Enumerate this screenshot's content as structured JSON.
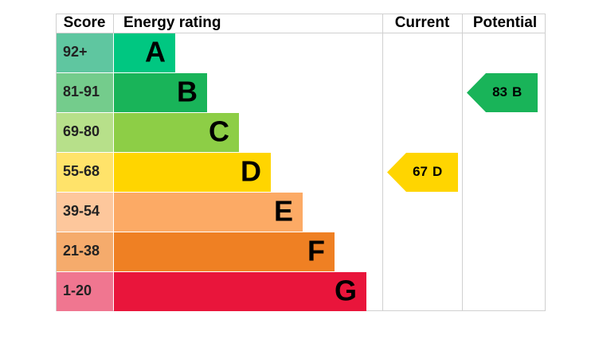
{
  "chart_data": {
    "type": "epc",
    "headers": {
      "score": "Score",
      "rating": "Energy rating",
      "current": "Current",
      "potential": "Potential"
    },
    "bands": [
      {
        "score": "92+",
        "letter": "A",
        "color": "#00c781",
        "score_color": "#5fc6a0"
      },
      {
        "score": "81-91",
        "letter": "B",
        "color": "#19b459",
        "score_color": "#74cc8c"
      },
      {
        "score": "69-80",
        "letter": "C",
        "color": "#8dce46",
        "score_color": "#b7e08a"
      },
      {
        "score": "55-68",
        "letter": "D",
        "color": "#ffd500",
        "score_color": "#ffe36a"
      },
      {
        "score": "39-54",
        "letter": "E",
        "color": "#fcaa65",
        "score_color": "#fdc79c"
      },
      {
        "score": "21-38",
        "letter": "F",
        "color": "#ef8023",
        "score_color": "#f5ab6c"
      },
      {
        "score": "1-20",
        "letter": "G",
        "color": "#e9153b",
        "score_color": "#f07690"
      }
    ],
    "current": {
      "value": 67,
      "band": "D"
    },
    "potential": {
      "value": 83,
      "band": "B"
    }
  }
}
